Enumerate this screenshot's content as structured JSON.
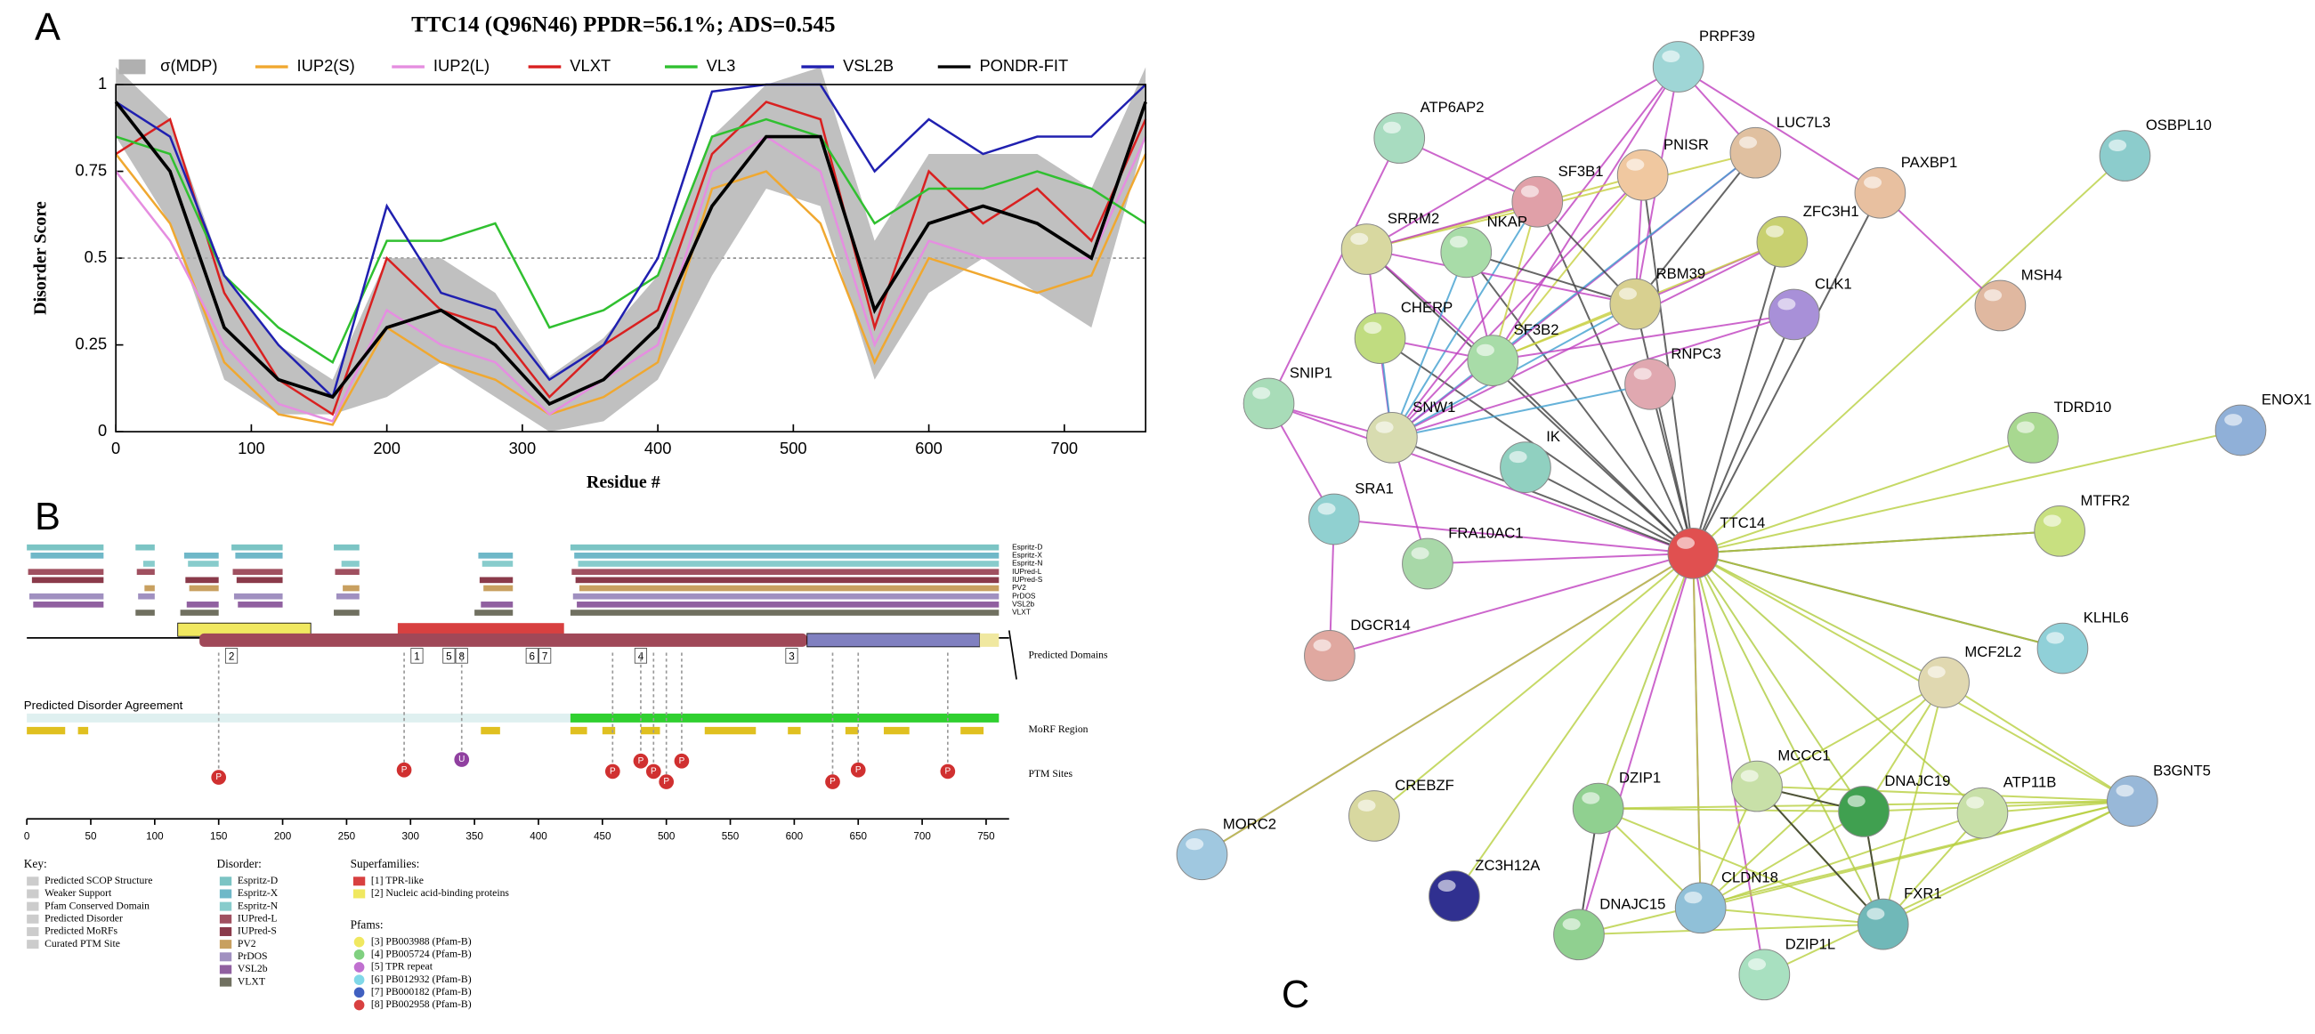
{
  "panel_labels": [
    "A",
    "B",
    "C"
  ],
  "chart_data": {
    "type": "line",
    "title": "TTC14 (Q96N46) PPDR=56.1%; ADS=0.545",
    "x_label": "Residue #",
    "y_label": "Disorder Score",
    "x": [
      0,
      40,
      80,
      120,
      160,
      200,
      240,
      280,
      320,
      360,
      400,
      440,
      480,
      520,
      560,
      600,
      640,
      680,
      720,
      760
    ],
    "series": [
      {
        "name": "σ(MDP)",
        "color": "#b0b0b0",
        "kind": "band",
        "values": [
          0.1,
          0.15,
          0.15,
          0.1,
          0.05,
          0.2,
          0.15,
          0.15,
          0.08,
          0.12,
          0.15,
          0.2,
          0.15,
          0.2,
          0.2,
          0.2,
          0.15,
          0.2,
          0.2,
          0.1
        ]
      },
      {
        "name": "IUP2(S)",
        "color": "#f0a830",
        "values": [
          0.8,
          0.6,
          0.2,
          0.05,
          0.02,
          0.3,
          0.2,
          0.15,
          0.05,
          0.1,
          0.2,
          0.7,
          0.75,
          0.6,
          0.2,
          0.5,
          0.45,
          0.4,
          0.45,
          0.8
        ]
      },
      {
        "name": "IUP2(L)",
        "color": "#e58ee0",
        "values": [
          0.75,
          0.55,
          0.25,
          0.08,
          0.03,
          0.35,
          0.25,
          0.2,
          0.05,
          0.15,
          0.25,
          0.75,
          0.85,
          0.75,
          0.25,
          0.55,
          0.5,
          0.5,
          0.5,
          0.85
        ]
      },
      {
        "name": "VLXT",
        "color": "#d92020",
        "values": [
          0.8,
          0.9,
          0.4,
          0.15,
          0.05,
          0.5,
          0.35,
          0.3,
          0.1,
          0.25,
          0.35,
          0.8,
          0.95,
          0.9,
          0.3,
          0.75,
          0.6,
          0.7,
          0.55,
          0.9
        ]
      },
      {
        "name": "VL3",
        "color": "#30c030",
        "values": [
          0.85,
          0.8,
          0.45,
          0.3,
          0.2,
          0.55,
          0.55,
          0.6,
          0.3,
          0.35,
          0.45,
          0.85,
          0.9,
          0.85,
          0.6,
          0.7,
          0.7,
          0.75,
          0.7,
          0.6
        ]
      },
      {
        "name": "VSL2B",
        "color": "#2020b0",
        "values": [
          0.95,
          0.85,
          0.45,
          0.25,
          0.1,
          0.65,
          0.4,
          0.35,
          0.15,
          0.25,
          0.5,
          0.98,
          1,
          1,
          0.75,
          0.9,
          0.8,
          0.85,
          0.85,
          1
        ]
      },
      {
        "name": "PONDR-FIT",
        "color": "#000000",
        "values": [
          0.95,
          0.75,
          0.3,
          0.15,
          0.1,
          0.3,
          0.35,
          0.25,
          0.08,
          0.15,
          0.3,
          0.65,
          0.85,
          0.85,
          0.35,
          0.6,
          0.65,
          0.6,
          0.5,
          0.95
        ]
      }
    ],
    "xlim": [
      0,
      760
    ],
    "ylim": [
      0,
      1
    ],
    "xticks": [
      0,
      100,
      200,
      300,
      400,
      500,
      600,
      700
    ],
    "yticks": [
      0,
      0.25,
      0.5,
      0.75,
      1
    ],
    "ref_line": 0.5
  },
  "panel_b": {
    "track_labels": [
      "Espritz-D",
      "Espritz-X",
      "Espritz-N",
      "IUPred-L",
      "IUPred-S",
      "PV2",
      "PrDOS",
      "VSL2b",
      "VLXT"
    ],
    "section_labels": [
      "Predicted Domains",
      "MoRF Region",
      "PTM Sites"
    ],
    "agreement_label": "Predicted Disorder Agreement",
    "domain_labels": [
      "2",
      "1",
      "5",
      "8",
      "6",
      "7",
      "4",
      "3"
    ],
    "ptm_labels": [
      "P",
      "P",
      "U",
      "P",
      "P",
      "P",
      "P",
      "P",
      "P",
      "P",
      "P"
    ],
    "xticks": [
      0,
      50,
      100,
      150,
      200,
      250,
      300,
      350,
      400,
      450,
      500,
      550,
      600,
      650,
      700,
      750
    ],
    "key": {
      "title": "Key:",
      "items": [
        "Predicted SCOP Structure",
        "Weaker Support",
        "Pfam Conserved Domain",
        "Predicted Disorder",
        "Predicted MoRFs",
        "Curated PTM Site"
      ]
    },
    "disorder": {
      "title": "Disorder:",
      "items": [
        "Espritz-D",
        "Espritz-X",
        "Espritz-N",
        "IUPred-L",
        "IUPred-S",
        "PV2",
        "PrDOS",
        "VSL2b",
        "VLXT"
      ]
    },
    "superfamilies": {
      "title": "Superfamilies:",
      "items": [
        "[1] TPR-like",
        "[2] Nucleic acid-binding proteins"
      ]
    },
    "pfams": {
      "title": "Pfams:",
      "items": [
        "[3] PB003988 (Pfam-B)",
        "[4] PB005724 (Pfam-B)",
        "[5] TPR repeat",
        "[6] PB012932 (Pfam-B)",
        "[7] PB000182 (Pfam-B)",
        "[8] PB002958 (Pfam-B)"
      ]
    }
  },
  "panel_c": {
    "nodes": [
      "PRPF39",
      "ATP6AP2",
      "OSBPL10",
      "LUC7L3",
      "PNISR",
      "PAXBP1",
      "SF3B1",
      "SRRM2",
      "NKAP",
      "ZFC3H1",
      "RBM39",
      "CLK1",
      "MSH4",
      "CHERP",
      "SF3B2",
      "RNPC3",
      "SNIP1",
      "SNW1",
      "TDRD10",
      "ENOX1",
      "IK",
      "SRA1",
      "MTFR2",
      "TTC14",
      "FRA10AC1",
      "KLHL6",
      "DGCR14",
      "MCF2L2",
      "CREBZF",
      "MCCC1",
      "DZIP1",
      "DNAJC19",
      "ATP11B",
      "B3GNT5",
      "MORC2",
      "ZC3H12A",
      "CLDN18",
      "DNAJC15",
      "FXR1",
      "DZIP1L"
    ]
  }
}
